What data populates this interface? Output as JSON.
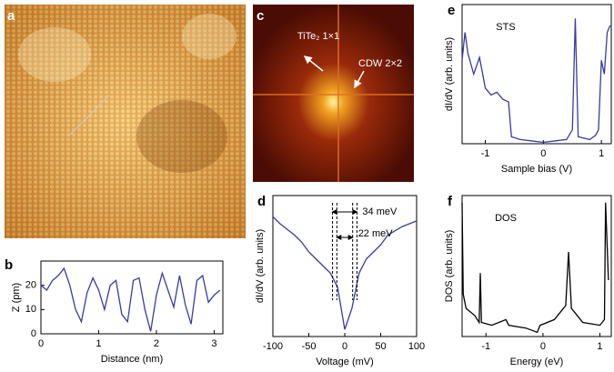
{
  "chart_data": [
    {
      "type": "image",
      "panel": "a"
    },
    {
      "type": "line",
      "panel": "b",
      "xlabel": "Distance (nm)",
      "ylabel": "Z (pm)",
      "x": [
        0,
        0.1,
        0.2,
        0.3,
        0.4,
        0.5,
        0.6,
        0.7,
        0.8,
        0.9,
        1.0,
        1.1,
        1.2,
        1.3,
        1.4,
        1.5,
        1.6,
        1.7,
        1.8,
        1.9,
        2.0,
        2.1,
        2.2,
        2.3,
        2.4,
        2.5,
        2.6,
        2.7,
        2.8,
        2.9,
        3.0,
        3.1
      ],
      "series": [
        {
          "color": "#3a3aa8",
          "values": [
            20,
            18,
            22,
            24,
            27,
            20,
            10,
            5,
            17,
            23,
            18,
            10,
            20,
            22,
            8,
            5,
            22,
            23,
            10,
            1,
            16,
            25,
            18,
            11,
            24,
            12,
            4,
            22,
            24,
            13,
            16,
            18
          ]
        }
      ],
      "xlim": [
        0,
        3.15
      ],
      "xticks": [
        0,
        1,
        2,
        3
      ],
      "ylim": [
        0,
        30
      ],
      "yticks": [
        0,
        10,
        20
      ]
    },
    {
      "type": "image",
      "panel": "c",
      "annotations": [
        "TiTe₂ 1×1",
        "CDW 2×2"
      ]
    },
    {
      "type": "line",
      "panel": "d",
      "xlabel": "Voltage (mV)",
      "ylabel": "dI/dV (arb. units)",
      "x": [
        -100,
        -90,
        -80,
        -70,
        -60,
        -50,
        -40,
        -30,
        -20,
        -10,
        0,
        10,
        20,
        30,
        40,
        50,
        60,
        70,
        80,
        90,
        100
      ],
      "series": [
        {
          "color": "#3a3aa8",
          "values": [
            0.85,
            0.8,
            0.76,
            0.72,
            0.67,
            0.6,
            0.55,
            0.5,
            0.45,
            0.35,
            0.05,
            0.2,
            0.45,
            0.55,
            0.6,
            0.65,
            0.72,
            0.75,
            0.78,
            0.8,
            0.82
          ]
        }
      ],
      "xlim": [
        -100,
        100
      ],
      "xticks": [
        -100,
        -50,
        0,
        50,
        100
      ],
      "ylim": [
        0,
        1
      ],
      "markers": [
        {
          "x": [
            -17,
            17
          ],
          "label": "34 meV"
        },
        {
          "x": [
            -11,
            11
          ],
          "label": "22 meV"
        }
      ]
    },
    {
      "type": "line",
      "panel": "e",
      "xlabel": "Sample bias (V)",
      "ylabel": "dI/dV (arb. units)",
      "annotation": "STS",
      "x": [
        -1.4,
        -1.35,
        -1.3,
        -1.2,
        -1.1,
        -1.0,
        -0.9,
        -0.8,
        -0.7,
        -0.6,
        -0.55,
        -0.4,
        -0.2,
        0,
        0.2,
        0.4,
        0.5,
        0.55,
        0.6,
        0.8,
        0.9,
        0.95,
        1.0,
        1.05,
        1.1,
        1.15
      ],
      "series": [
        {
          "color": "#3a3aa8",
          "values": [
            0.6,
            0.8,
            0.65,
            0.5,
            0.62,
            0.4,
            0.35,
            0.37,
            0.32,
            0.3,
            0.05,
            0.03,
            0.02,
            0.01,
            0.02,
            0.03,
            0.1,
            0.9,
            0.05,
            0.03,
            0.06,
            0.1,
            0.6,
            0.5,
            0.8,
            0.85
          ]
        }
      ],
      "xlim": [
        -1.4,
        1.17
      ],
      "xticks": [
        -1,
        0,
        1
      ],
      "ylim": [
        0,
        1
      ]
    },
    {
      "type": "line",
      "panel": "f",
      "xlabel": "Energy (eV)",
      "ylabel": "DOS (arb. units)",
      "annotation": "DOS",
      "x": [
        -1.42,
        -1.4,
        -1.35,
        -1.2,
        -1.12,
        -1.1,
        -1.08,
        -0.9,
        -0.65,
        -0.6,
        -0.3,
        -0.1,
        -0.05,
        0.2,
        0.4,
        0.45,
        0.5,
        0.7,
        1.0,
        1.08,
        1.1,
        1.15
      ],
      "series": [
        {
          "color": "#000000",
          "values": [
            0.95,
            0.3,
            0.2,
            0.15,
            0.1,
            0.45,
            0.1,
            0.08,
            0.12,
            0.08,
            0.06,
            0.03,
            0.08,
            0.12,
            0.22,
            0.6,
            0.2,
            0.1,
            0.08,
            0.12,
            0.95,
            0.4
          ]
        }
      ],
      "xlim": [
        -1.42,
        1.2
      ],
      "xticks": [
        -1,
        0,
        1
      ],
      "ylim": [
        0,
        1
      ]
    }
  ]
}
